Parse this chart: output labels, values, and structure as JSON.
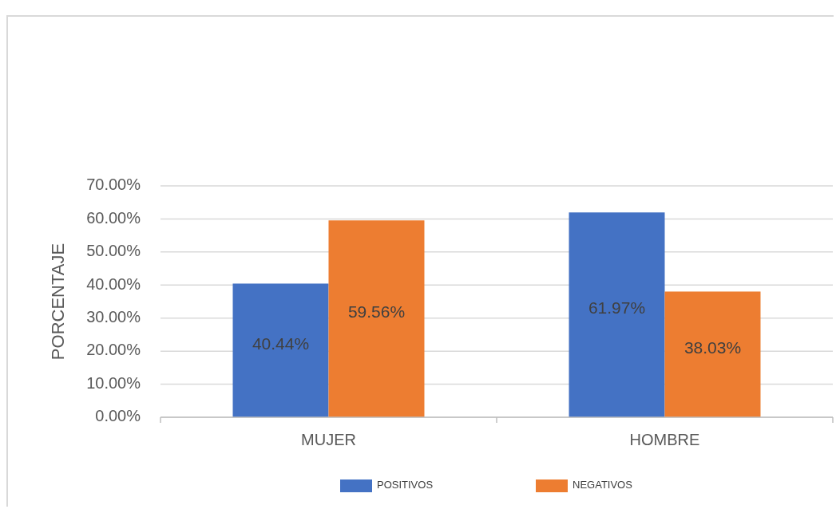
{
  "chart_data": {
    "type": "bar",
    "ylabel": "PORCENTAJE",
    "categories": [
      "MUJER",
      "HOMBRE"
    ],
    "series": [
      {
        "name": "POSITIVOS",
        "color": "#4472c4",
        "values": [
          40.44,
          61.97
        ],
        "value_labels": [
          "40.44%",
          "61.97%"
        ]
      },
      {
        "name": "NEGATIVOS",
        "color": "#ed7d31",
        "values": [
          59.56,
          38.03
        ],
        "value_labels": [
          "59.56%",
          "38.03%"
        ]
      }
    ],
    "ylim": [
      0,
      70
    ],
    "yticks": [
      {
        "value": 0,
        "label": "0.00%"
      },
      {
        "value": 10,
        "label": "10.00%"
      },
      {
        "value": 20,
        "label": "20.00%"
      },
      {
        "value": 30,
        "label": "30.00%"
      },
      {
        "value": 40,
        "label": "40.00%"
      },
      {
        "value": 50,
        "label": "50.00%"
      },
      {
        "value": 60,
        "label": "60.00%"
      },
      {
        "value": 70,
        "label": "70.00%"
      }
    ],
    "grid": "y",
    "legend": "bottom"
  }
}
